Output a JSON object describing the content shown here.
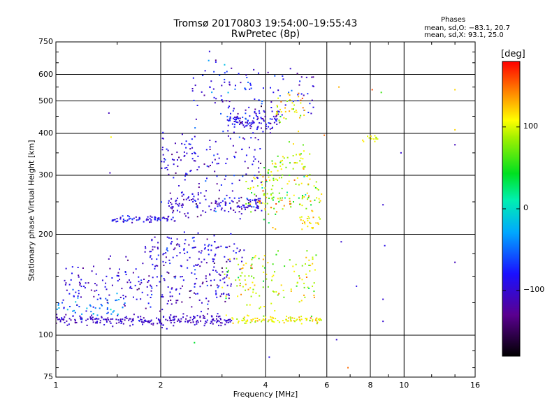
{
  "title": "Tromsø 20170803 19:54:00–19:55:43",
  "subtitle": "RwPretec (8p)",
  "stats": {
    "header": "Phases",
    "line_o": "mean, sd,O: −83.1, 20.7",
    "line_x": "mean, sd,X:  93.1, 25.0"
  },
  "colorbar": {
    "unit": "[deg]",
    "range": [
      -180,
      180
    ],
    "ticks": [
      {
        "value": 100,
        "label": "100"
      },
      {
        "value": 0,
        "label": "0"
      },
      {
        "value": -100,
        "label": "−100"
      }
    ]
  },
  "chart_data": {
    "type": "scatter",
    "title": "Tromsø 20170803 19:54:00–19:55:43",
    "subtitle": "RwPretec (8p)",
    "xlabel": "Frequency [MHz]",
    "ylabel": "Stationary phase Virtual Height [km]",
    "xscale": "log",
    "yscale": "log",
    "xlim": [
      1,
      16
    ],
    "ylim": [
      75,
      750
    ],
    "x_ticks": [
      {
        "v": 1,
        "l": "1"
      },
      {
        "v": 2,
        "l": "2"
      },
      {
        "v": 4,
        "l": "4"
      },
      {
        "v": 6,
        "l": "6"
      },
      {
        "v": 8,
        "l": "8"
      },
      {
        "v": 10,
        "l": "10"
      },
      {
        "v": 16,
        "l": "16"
      }
    ],
    "y_ticks": [
      {
        "v": 75,
        "l": "75"
      },
      {
        "v": 100,
        "l": "100"
      },
      {
        "v": 200,
        "l": "200"
      },
      {
        "v": 300,
        "l": "300"
      },
      {
        "v": 400,
        "l": "400"
      },
      {
        "v": 500,
        "l": "500"
      },
      {
        "v": 600,
        "l": "600"
      },
      {
        "v": 750,
        "l": "750"
      }
    ],
    "grid": true,
    "color_variable": "phase [deg]",
    "groups": [
      {
        "x_range": [
          1.0,
          3.2
        ],
        "y_center": 111,
        "y_spread": 0.03,
        "phase": -105,
        "phase_sd": 10,
        "count": 240
      },
      {
        "x_range": [
          3.2,
          5.8
        ],
        "y_center": 111,
        "y_spread": 0.02,
        "phase": 110,
        "phase_sd": 15,
        "count": 90
      },
      {
        "x_range": [
          1.0,
          1.6
        ],
        "y_center": 122,
        "y_spread": 0.06,
        "phase": -40,
        "phase_sd": 20,
        "count": 50
      },
      {
        "x_range": [
          1.05,
          3.2
        ],
        "y_center": 140,
        "y_spread": 0.15,
        "phase": -100,
        "phase_sd": 20,
        "count": 240
      },
      {
        "x_range": [
          3.0,
          5.6
        ],
        "y_center": 145,
        "y_spread": 0.18,
        "phase": 95,
        "phase_sd": 30,
        "count": 130
      },
      {
        "x_range": [
          1.8,
          3.5
        ],
        "y_center": 178,
        "y_spread": 0.1,
        "phase": -95,
        "phase_sd": 20,
        "count": 110
      },
      {
        "x_range": [
          1.45,
          2.2
        ],
        "y_center": 222,
        "y_spread": 0.02,
        "phase": -90,
        "phase_sd": 15,
        "count": 70
      },
      {
        "x_range": [
          2.1,
          3.9
        ],
        "y_center": 245,
        "y_spread": 0.06,
        "phase": -100,
        "phase_sd": 20,
        "count": 150
      },
      {
        "x_range": [
          3.5,
          5.8
        ],
        "y_center": 260,
        "y_spread": 0.12,
        "phase": 85,
        "phase_sd": 35,
        "count": 120
      },
      {
        "x_range": [
          2.0,
          3.9
        ],
        "y_center": 330,
        "y_spread": 0.18,
        "phase": -100,
        "phase_sd": 20,
        "count": 140
      },
      {
        "x_range": [
          4.0,
          5.4
        ],
        "y_center": 320,
        "y_spread": 0.1,
        "phase": 100,
        "phase_sd": 25,
        "count": 60
      },
      {
        "x_range": [
          3.1,
          4.4
        ],
        "y_center": 440,
        "y_spread": 0.06,
        "phase": -90,
        "phase_sd": 20,
        "count": 120
      },
      {
        "x_range": [
          2.4,
          5.5
        ],
        "y_center": 540,
        "y_spread": 0.18,
        "phase": -85,
        "phase_sd": 25,
        "count": 110
      },
      {
        "x_range": [
          4.3,
          5.2
        ],
        "y_center": 470,
        "y_spread": 0.1,
        "phase": 110,
        "phase_sd": 25,
        "count": 40
      },
      {
        "x_range": [
          5.0,
          5.8
        ],
        "y_center": 215,
        "y_spread": 0.04,
        "phase": 110,
        "phase_sd": 20,
        "count": 25
      },
      {
        "x_range": [
          7.6,
          8.4
        ],
        "y_center": 388,
        "y_spread": 0.02,
        "phase": 105,
        "phase_sd": 10,
        "count": 14
      }
    ],
    "isolated_points": [
      {
        "x": 1.42,
        "y": 460,
        "phase": -110
      },
      {
        "x": 1.43,
        "y": 305,
        "phase": -110
      },
      {
        "x": 1.44,
        "y": 390,
        "phase": 110
      },
      {
        "x": 2.5,
        "y": 95,
        "phase": 40
      },
      {
        "x": 4.1,
        "y": 86,
        "phase": -90
      },
      {
        "x": 6.4,
        "y": 97,
        "phase": -100
      },
      {
        "x": 6.6,
        "y": 190,
        "phase": -100
      },
      {
        "x": 6.9,
        "y": 80,
        "phase": 150
      },
      {
        "x": 6.5,
        "y": 550,
        "phase": 130
      },
      {
        "x": 8.1,
        "y": 540,
        "phase": 160
      },
      {
        "x": 8.6,
        "y": 530,
        "phase": 60
      },
      {
        "x": 8.7,
        "y": 245,
        "phase": -100
      },
      {
        "x": 8.8,
        "y": 185,
        "phase": -90
      },
      {
        "x": 8.7,
        "y": 128,
        "phase": -100
      },
      {
        "x": 8.7,
        "y": 110,
        "phase": -100
      },
      {
        "x": 9.8,
        "y": 350,
        "phase": -100
      },
      {
        "x": 14.0,
        "y": 370,
        "phase": -110
      },
      {
        "x": 14.0,
        "y": 540,
        "phase": 120
      },
      {
        "x": 14.0,
        "y": 410,
        "phase": 120
      },
      {
        "x": 14.0,
        "y": 165,
        "phase": -110
      },
      {
        "x": 5.9,
        "y": 395,
        "phase": 150
      },
      {
        "x": 7.3,
        "y": 140,
        "phase": -90
      }
    ]
  }
}
